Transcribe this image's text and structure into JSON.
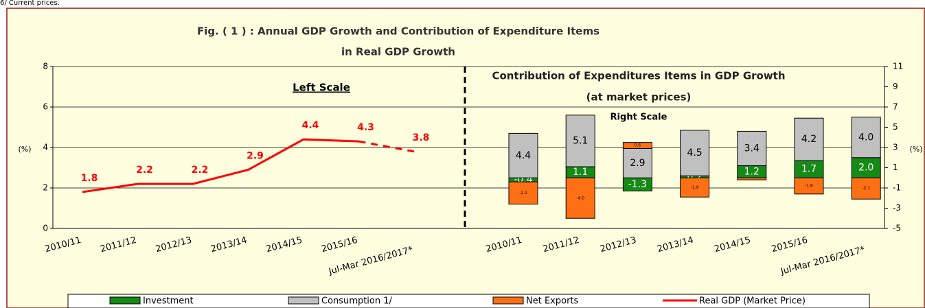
{
  "note": "6/ Current prices.",
  "title": "Fig. ( 1 ) : Annual GDP Growth and Contribution of Expenditure Items",
  "title_line2": "in Real GDP Growth",
  "chart_data": [
    {
      "type": "line",
      "annotation": "Left Scale",
      "y_label": "(%)",
      "categories": [
        "2010/11",
        "2011/12",
        "2012/13",
        "2013/14",
        "2014/15",
        "2015/16",
        "Jul-Mar 2016/2017*"
      ],
      "series": [
        {
          "name": "Real GDP (Market Price)",
          "color": "#ff0000",
          "values": [
            1.8,
            2.2,
            2.2,
            2.9,
            4.4,
            4.3,
            3.8
          ]
        }
      ],
      "ylim": [
        0,
        8
      ],
      "yticks": [
        0,
        2,
        4,
        6,
        8
      ],
      "grid": true
    },
    {
      "type": "stacked_bar",
      "title": "Contribution of Expenditures Items in GDP Growth",
      "subtitle": "(at market prices)",
      "annotation": "Right Scale",
      "y_label": "(%)",
      "categories": [
        "2010/11",
        "2011/12",
        "2012/13",
        "2013/14",
        "2014/15",
        "2015/16",
        "Jul-Mar 2016/2017*"
      ],
      "series": [
        {
          "name": "Investment",
          "color": "#168a16",
          "axis": "y2",
          "values": [
            -0.4,
            1.1,
            -1.3,
            0.2,
            1.2,
            1.7,
            2.0
          ],
          "value_labels": [
            "-0.4",
            "1.1",
            "-1.3",
            "0.2",
            "1.2",
            "1.7",
            "2.0"
          ]
        },
        {
          "name": "Consumption 1/",
          "color": "#c0c0c0",
          "axis": "y2",
          "values": [
            4.4,
            5.1,
            2.9,
            4.5,
            3.4,
            4.2,
            4.0
          ],
          "value_labels": [
            "4.4",
            "5.1",
            "2.9",
            "4.5",
            "3.4",
            "4.2",
            "4.0"
          ]
        },
        {
          "name": "Net Exports",
          "color": "#ff7014",
          "axis": "y2",
          "values": [
            -2.2,
            -4.0,
            0.6,
            -1.9,
            -0.2,
            -1.6,
            -2.1
          ],
          "value_labels": [
            "-2.2",
            "-4.0",
            "0.6",
            "-1.9",
            null,
            "-1.6",
            "-2.1"
          ]
        }
      ],
      "y2lim": [
        -5,
        11
      ],
      "y2ticks": [
        -5,
        -3,
        -1,
        1,
        3,
        5,
        7,
        9,
        11
      ]
    }
  ]
}
